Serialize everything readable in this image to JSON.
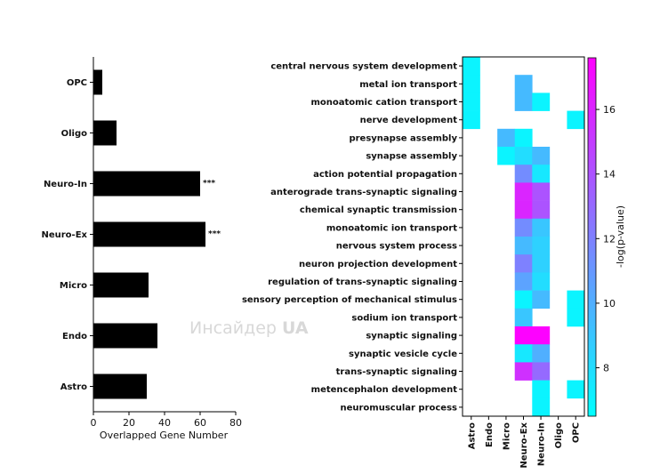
{
  "watermark": {
    "text": "Инсайдер ",
    "bold": "UA"
  },
  "chart_data": [
    {
      "type": "bar",
      "orientation": "horizontal",
      "categories": [
        "OPC",
        "Oligo",
        "Neuro-In",
        "Neuro-Ex",
        "Micro",
        "Endo",
        "Astro"
      ],
      "values": [
        5,
        13,
        60,
        63,
        31,
        36,
        30
      ],
      "annotations": [
        "",
        "",
        "***",
        "***",
        "",
        "",
        ""
      ],
      "xlabel": "Overlapped Gene Number",
      "xlim": [
        0,
        80
      ],
      "xticks": [
        0,
        20,
        40,
        60,
        80
      ],
      "bar_color": "#000000"
    },
    {
      "type": "heatmap",
      "rows": [
        "central nervous system development",
        "metal ion transport",
        "monoatomic cation transport",
        "nerve development",
        "presynapse assembly",
        "synapse assembly",
        "action potential propagation",
        "anterograde trans-synaptic signaling",
        "chemical synaptic transmission",
        "monoatomic ion transport",
        "nervous system process",
        "neuron projection development",
        "regulation of trans-synaptic signaling",
        "sensory perception of mechanical stimulus",
        "sodium ion transport",
        "synaptic signaling",
        "synaptic vesicle cycle",
        "trans-synaptic signaling",
        "metencephalon development",
        "neuromuscular process"
      ],
      "columns": [
        "Astro",
        "Endo",
        "Micro",
        "Neuro-Ex",
        "Neuro-In",
        "Oligo",
        "OPC"
      ],
      "values": [
        [
          7.0,
          null,
          null,
          null,
          null,
          null,
          null
        ],
        [
          7.0,
          null,
          null,
          9.5,
          null,
          null,
          null
        ],
        [
          7.0,
          null,
          null,
          9.5,
          7.0,
          null,
          null
        ],
        [
          7.0,
          null,
          null,
          null,
          null,
          null,
          7.0
        ],
        [
          null,
          null,
          9.5,
          7.0,
          null,
          null,
          null
        ],
        [
          null,
          null,
          7.0,
          8.0,
          9.5,
          null,
          null
        ],
        [
          null,
          null,
          null,
          11.5,
          7.5,
          null,
          null
        ],
        [
          null,
          null,
          null,
          16.0,
          14.0,
          null,
          null
        ],
        [
          null,
          null,
          null,
          16.0,
          14.0,
          null,
          null
        ],
        [
          null,
          null,
          null,
          11.5,
          9.0,
          null,
          null
        ],
        [
          null,
          null,
          null,
          9.5,
          8.5,
          null,
          null
        ],
        [
          null,
          null,
          null,
          12.0,
          8.5,
          null,
          null
        ],
        [
          null,
          null,
          null,
          10.5,
          8.0,
          null,
          null
        ],
        [
          null,
          null,
          null,
          7.0,
          9.5,
          null,
          7.0
        ],
        [
          null,
          null,
          null,
          9.0,
          null,
          null,
          7.0
        ],
        [
          null,
          null,
          null,
          17.5,
          17.5,
          null,
          null
        ],
        [
          null,
          null,
          null,
          7.5,
          10.0,
          null,
          null
        ],
        [
          null,
          null,
          null,
          15.5,
          13.0,
          null,
          null
        ],
        [
          null,
          null,
          null,
          null,
          7.0,
          null,
          7.0
        ],
        [
          null,
          null,
          null,
          null,
          7.0,
          null,
          null
        ]
      ],
      "colorbar": {
        "label": "-log(p-value)",
        "min": 6.5,
        "max": 17.6,
        "ticks": [
          8,
          10,
          12,
          14,
          16
        ],
        "colors": [
          "#00ffff",
          "#ff00ff"
        ]
      }
    }
  ]
}
